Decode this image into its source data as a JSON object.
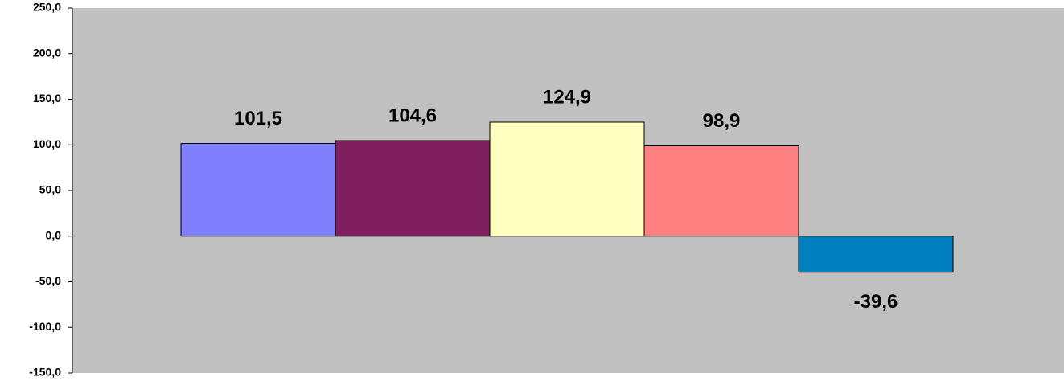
{
  "chart_data": {
    "type": "bar",
    "categories": [
      "",
      "",
      "",
      "",
      ""
    ],
    "values": [
      101.5,
      104.6,
      124.9,
      98.9,
      -39.6
    ],
    "value_labels": [
      "101,5",
      "104,6",
      "124,9",
      "98,9",
      "-39,6"
    ],
    "bar_colors": [
      "#8080FF",
      "#7F1F5F",
      "#FFFFC0",
      "#FF8080",
      "#0080C0"
    ],
    "title": "",
    "xlabel": "",
    "ylabel": "",
    "ylim": [
      -150,
      250
    ],
    "yticks": [
      250,
      200,
      150,
      100,
      50,
      0,
      -50,
      -100,
      -150
    ],
    "ytick_labels": [
      "250,0",
      "200,0",
      "150,0",
      "100,0",
      "50,0",
      "0,0",
      "-50,0",
      "-100,0",
      "-150,0"
    ],
    "grid": false,
    "legend": "none",
    "plot_background": "#C0C0C0",
    "bar_outline": "#000000"
  }
}
